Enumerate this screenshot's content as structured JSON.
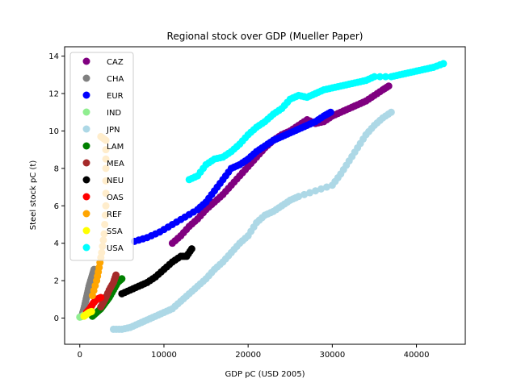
{
  "chart_data": {
    "type": "scatter",
    "title": "Regional stock over GDP (Mueller Paper)",
    "xlabel": "GDP pC (USD 2005)",
    "ylabel": "Steel stock pC (t)",
    "xlim": [
      -1800,
      45800
    ],
    "ylim": [
      -1.4,
      14.5
    ],
    "xticks": [
      0,
      10000,
      20000,
      30000,
      40000
    ],
    "yticks": [
      0,
      2,
      4,
      6,
      8,
      10,
      12,
      14
    ],
    "grid": false,
    "legend_position": "upper-left",
    "series": [
      {
        "name": "CAZ",
        "color": "#800080",
        "points": [
          [
            11000,
            4.0
          ],
          [
            12000,
            4.4
          ],
          [
            13000,
            4.9
          ],
          [
            14000,
            5.3
          ],
          [
            15000,
            5.8
          ],
          [
            16000,
            6.2
          ],
          [
            17000,
            6.6
          ],
          [
            18000,
            7.1
          ],
          [
            19000,
            7.6
          ],
          [
            20000,
            8.1
          ],
          [
            21000,
            8.6
          ],
          [
            22000,
            9.1
          ],
          [
            23000,
            9.5
          ],
          [
            24000,
            9.8
          ],
          [
            25000,
            10.0
          ],
          [
            26000,
            10.3
          ],
          [
            27000,
            10.6
          ],
          [
            28000,
            10.4
          ],
          [
            29000,
            10.5
          ],
          [
            30000,
            10.8
          ],
          [
            31000,
            11.0
          ],
          [
            32000,
            11.2
          ],
          [
            33000,
            11.4
          ],
          [
            34000,
            11.6
          ],
          [
            35000,
            11.9
          ],
          [
            36000,
            12.2
          ],
          [
            36700,
            12.4
          ]
        ]
      },
      {
        "name": "CHA",
        "color": "#808080",
        "points": [
          [
            300,
            0.2
          ],
          [
            500,
            0.5
          ],
          [
            700,
            0.9
          ],
          [
            900,
            1.3
          ],
          [
            1100,
            1.7
          ],
          [
            1300,
            2.0
          ],
          [
            1500,
            2.3
          ],
          [
            1700,
            2.6
          ]
        ]
      },
      {
        "name": "EUR",
        "color": "#0000ff",
        "points": [
          [
            6500,
            4.1
          ],
          [
            8000,
            4.3
          ],
          [
            9500,
            4.6
          ],
          [
            11000,
            5.0
          ],
          [
            12500,
            5.4
          ],
          [
            14000,
            5.8
          ],
          [
            15000,
            6.2
          ],
          [
            16000,
            6.8
          ],
          [
            17000,
            7.4
          ],
          [
            18000,
            8.0
          ],
          [
            19000,
            8.2
          ],
          [
            20000,
            8.5
          ],
          [
            21000,
            8.9
          ],
          [
            22000,
            9.2
          ],
          [
            23000,
            9.5
          ],
          [
            24000,
            9.7
          ],
          [
            25000,
            9.9
          ],
          [
            26000,
            10.1
          ],
          [
            27000,
            10.3
          ],
          [
            28000,
            10.5
          ],
          [
            29000,
            10.8
          ],
          [
            29800,
            11.0
          ]
        ]
      },
      {
        "name": "IND",
        "color": "#90ee90",
        "points": [
          [
            0,
            0.05
          ],
          [
            300,
            0.1
          ],
          [
            600,
            0.2
          ]
        ]
      },
      {
        "name": "JPN",
        "color": "#add8e6",
        "points": [
          [
            4000,
            -0.6
          ],
          [
            5000,
            -0.6
          ],
          [
            6000,
            -0.5
          ],
          [
            7000,
            -0.3
          ],
          [
            8000,
            -0.1
          ],
          [
            9000,
            0.1
          ],
          [
            10000,
            0.3
          ],
          [
            11000,
            0.5
          ],
          [
            12000,
            0.9
          ],
          [
            13000,
            1.3
          ],
          [
            14000,
            1.7
          ],
          [
            15000,
            2.1
          ],
          [
            16000,
            2.6
          ],
          [
            17000,
            3.0
          ],
          [
            18000,
            3.5
          ],
          [
            19000,
            4.0
          ],
          [
            20000,
            4.4
          ],
          [
            21000,
            5.1
          ],
          [
            22000,
            5.5
          ],
          [
            23000,
            5.7
          ],
          [
            24000,
            6.0
          ],
          [
            25000,
            6.3
          ],
          [
            26000,
            6.5
          ],
          [
            28000,
            6.8
          ],
          [
            30000,
            7.1
          ],
          [
            31000,
            7.7
          ],
          [
            32000,
            8.4
          ],
          [
            33000,
            9.1
          ],
          [
            34000,
            9.8
          ],
          [
            35000,
            10.3
          ],
          [
            36000,
            10.7
          ],
          [
            37000,
            11.0
          ]
        ]
      },
      {
        "name": "LAM",
        "color": "#008000",
        "points": [
          [
            1500,
            0.1
          ],
          [
            2000,
            0.3
          ],
          [
            2500,
            0.5
          ],
          [
            3000,
            0.8
          ],
          [
            3500,
            1.1
          ],
          [
            4000,
            1.5
          ],
          [
            4500,
            1.9
          ],
          [
            5000,
            2.1
          ]
        ]
      },
      {
        "name": "MEA",
        "color": "#a52a2a",
        "points": [
          [
            2500,
            0.6
          ],
          [
            3000,
            1.0
          ],
          [
            3500,
            1.5
          ],
          [
            4000,
            1.9
          ],
          [
            4300,
            2.3
          ]
        ]
      },
      {
        "name": "NEU",
        "color": "#000000",
        "points": [
          [
            5000,
            1.3
          ],
          [
            6000,
            1.5
          ],
          [
            7000,
            1.7
          ],
          [
            8000,
            1.9
          ],
          [
            9000,
            2.2
          ],
          [
            10000,
            2.6
          ],
          [
            11000,
            3.0
          ],
          [
            12000,
            3.3
          ],
          [
            12700,
            3.3
          ],
          [
            13300,
            3.7
          ]
        ]
      },
      {
        "name": "OAS",
        "color": "#ff0000",
        "points": [
          [
            800,
            0.3
          ],
          [
            1200,
            0.5
          ],
          [
            1600,
            0.8
          ],
          [
            2000,
            1.0
          ],
          [
            2500,
            1.1
          ]
        ]
      },
      {
        "name": "REF",
        "color": "#ffa500",
        "points": [
          [
            1500,
            1.2
          ],
          [
            2000,
            2.0
          ],
          [
            2300,
            2.7
          ],
          [
            2600,
            3.5
          ],
          [
            2900,
            4.5
          ],
          [
            3100,
            6.0
          ],
          [
            3100,
            8.0
          ],
          [
            3100,
            9.5
          ],
          [
            2500,
            9.7
          ]
        ]
      },
      {
        "name": "SSA",
        "color": "#ffff00",
        "points": [
          [
            500,
            0.1
          ],
          [
            800,
            0.2
          ],
          [
            1100,
            0.3
          ],
          [
            1400,
            0.35
          ]
        ]
      },
      {
        "name": "USA",
        "color": "#00ffff",
        "points": [
          [
            13000,
            7.4
          ],
          [
            14000,
            7.6
          ],
          [
            15000,
            8.2
          ],
          [
            16000,
            8.5
          ],
          [
            17000,
            8.6
          ],
          [
            18000,
            8.9
          ],
          [
            19000,
            9.3
          ],
          [
            20000,
            9.8
          ],
          [
            21000,
            10.2
          ],
          [
            22000,
            10.5
          ],
          [
            23000,
            10.9
          ],
          [
            24000,
            11.2
          ],
          [
            25000,
            11.7
          ],
          [
            26000,
            11.9
          ],
          [
            27000,
            11.8
          ],
          [
            28000,
            12.0
          ],
          [
            29000,
            12.2
          ],
          [
            30000,
            12.3
          ],
          [
            31000,
            12.4
          ],
          [
            32000,
            12.5
          ],
          [
            33000,
            12.6
          ],
          [
            34000,
            12.7
          ],
          [
            35000,
            12.9
          ],
          [
            37000,
            12.9
          ],
          [
            38000,
            13.0
          ],
          [
            39000,
            13.1
          ],
          [
            40000,
            13.2
          ],
          [
            41000,
            13.3
          ],
          [
            42000,
            13.4
          ],
          [
            43200,
            13.6
          ]
        ]
      }
    ]
  }
}
